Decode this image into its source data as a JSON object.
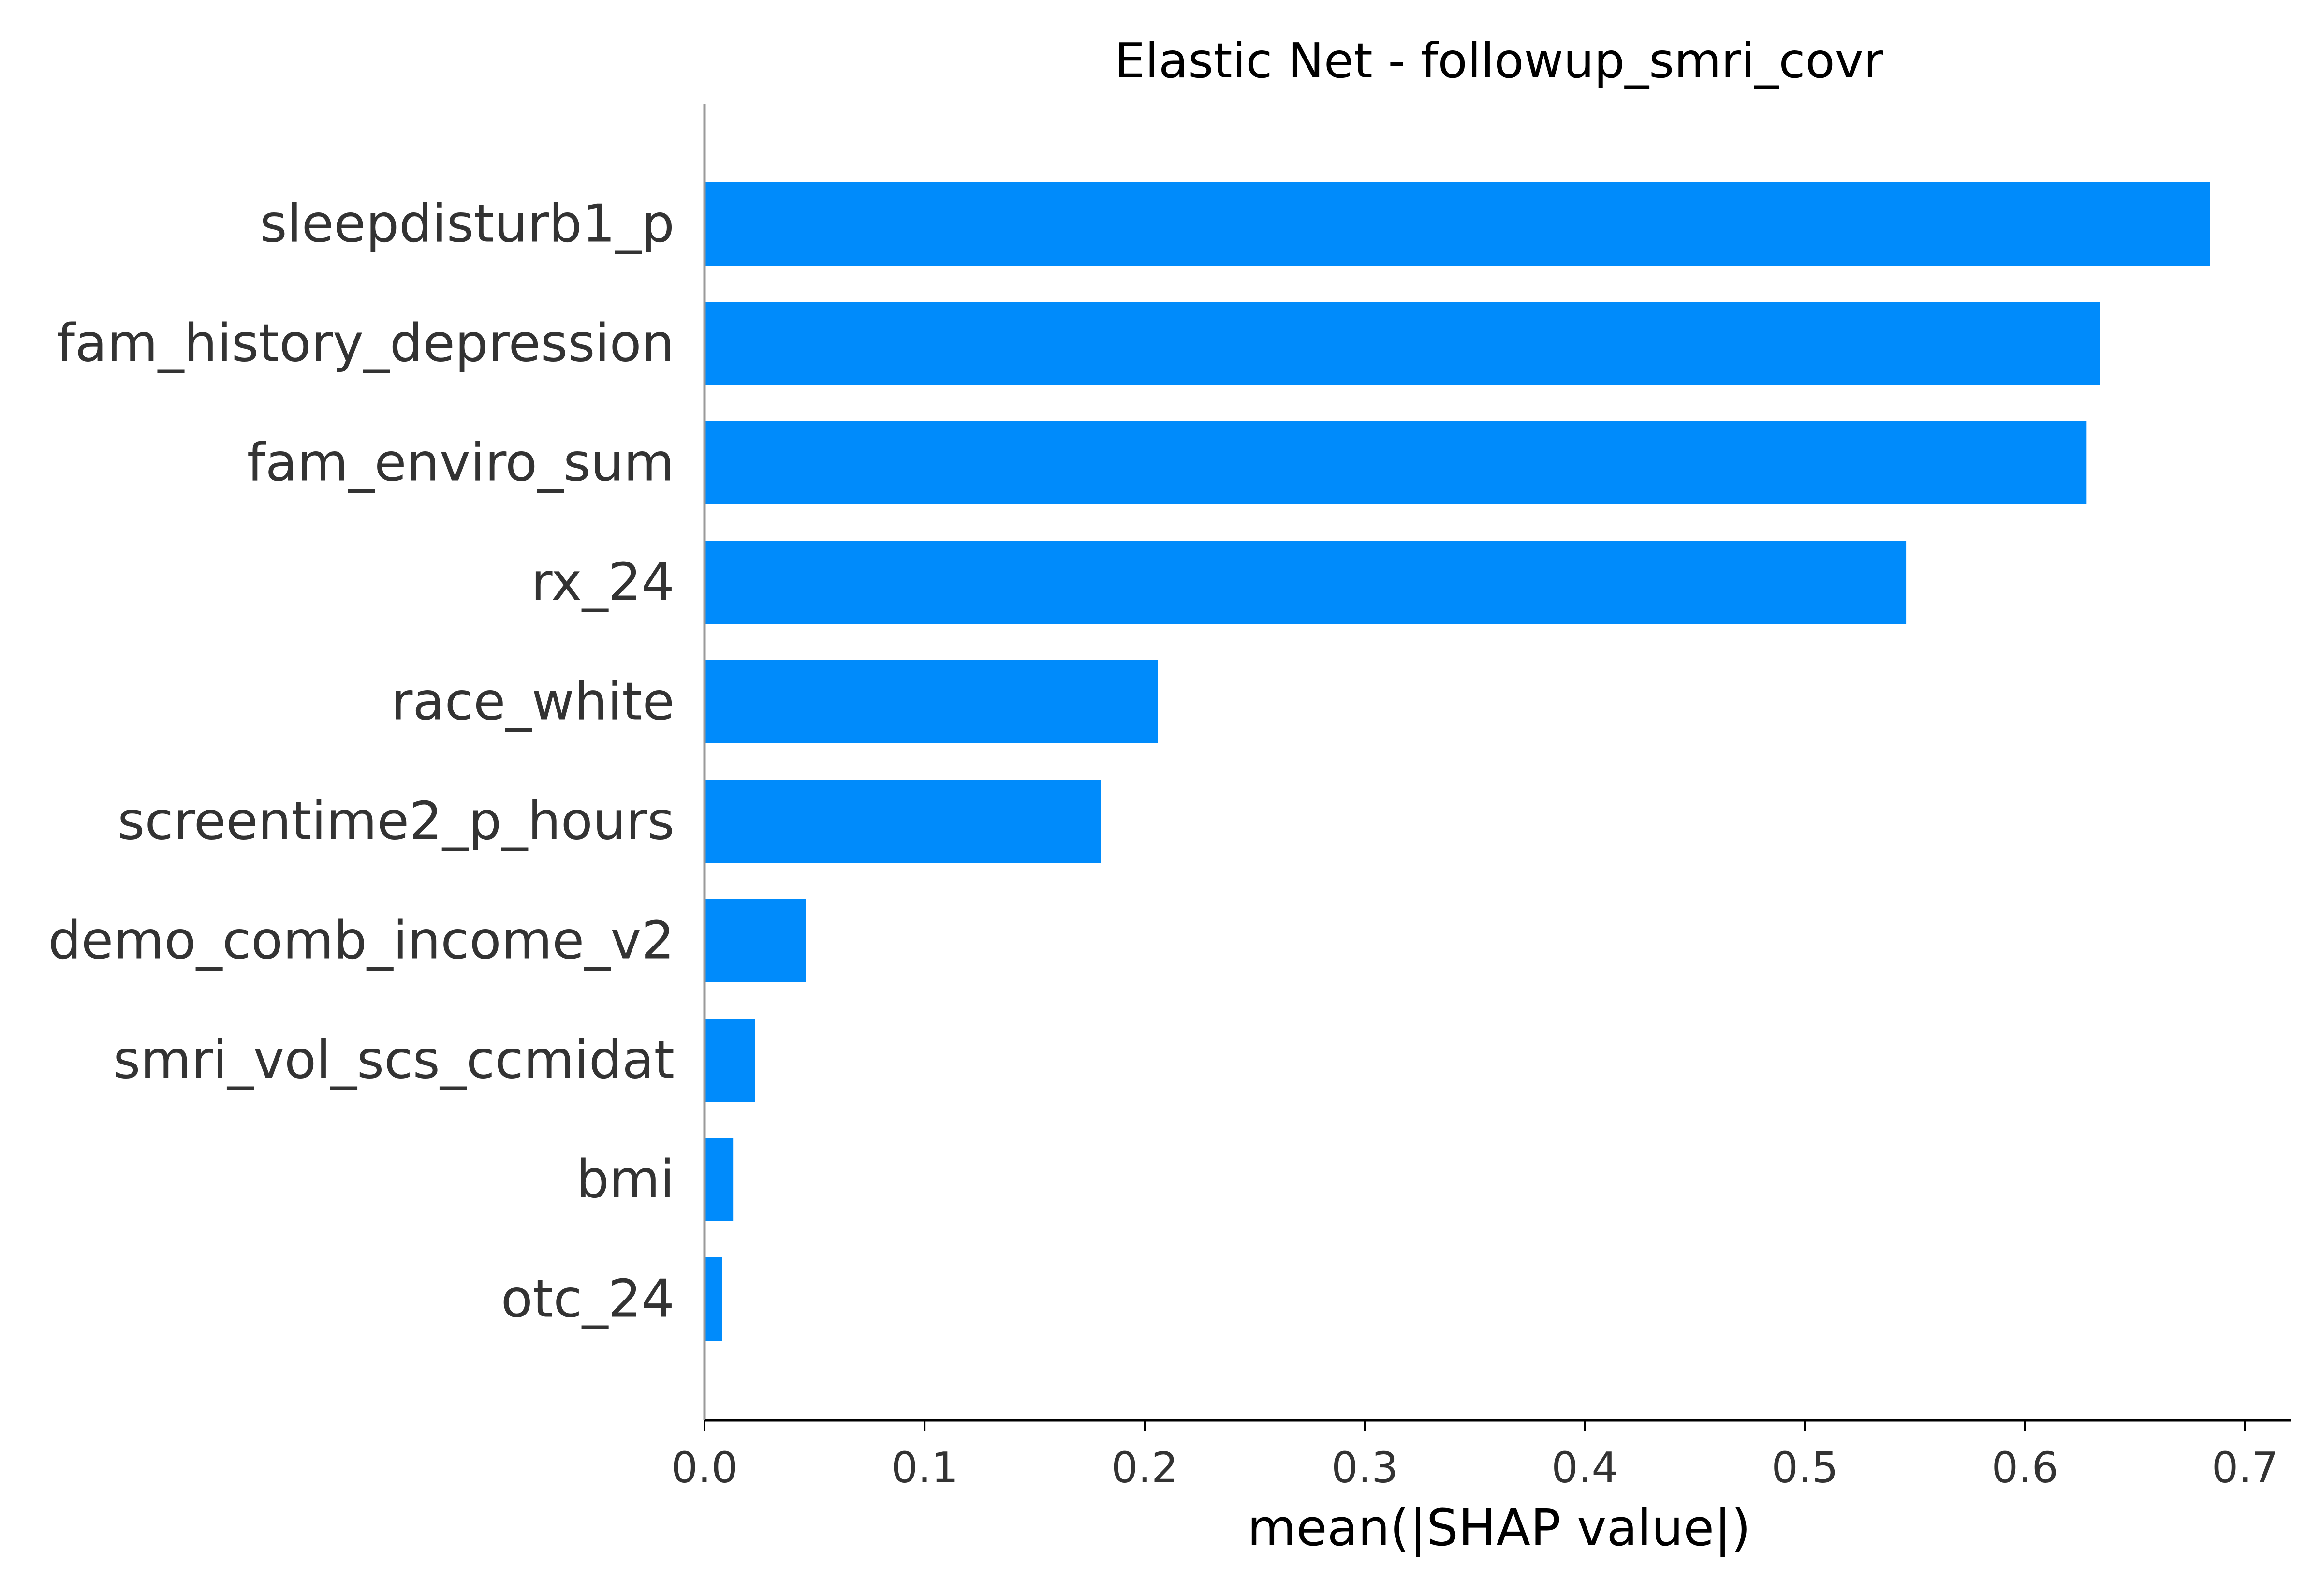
{
  "chart_data": {
    "type": "bar",
    "orientation": "horizontal",
    "title": "Elastic Net - followup_smri_covr",
    "xlabel": "mean(|SHAP value|)",
    "ylabel": "",
    "categories": [
      "sleepdisturb1_p",
      "fam_history_depression",
      "fam_enviro_sum",
      "rx_24",
      "race_white",
      "screentime2_p_hours",
      "demo_comb_income_v2",
      "smri_vol_scs_ccmidat",
      "bmi",
      "otc_24"
    ],
    "values": [
      0.684,
      0.634,
      0.628,
      0.546,
      0.206,
      0.18,
      0.046,
      0.023,
      0.013,
      0.008
    ],
    "xlim": [
      0,
      0.72
    ],
    "xticks": [
      0.0,
      0.1,
      0.2,
      0.3,
      0.4,
      0.5,
      0.6,
      0.7
    ],
    "xtick_labels": [
      "0.0",
      "0.1",
      "0.2",
      "0.3",
      "0.4",
      "0.5",
      "0.6",
      "0.7"
    ],
    "grid": false,
    "legend": "none",
    "colors": {
      "bar": "#008bfb",
      "axis": "#000000",
      "zero_line": "#999999",
      "text": "#333333"
    }
  }
}
